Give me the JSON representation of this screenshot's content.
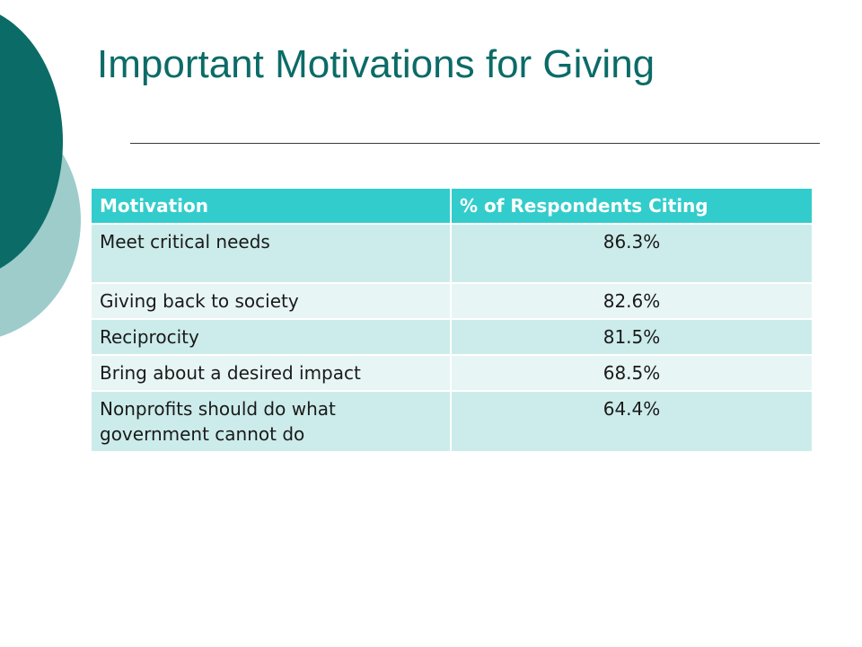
{
  "slide": {
    "title": "Important Motivations for Giving"
  },
  "table": {
    "headers": [
      "Motivation",
      "% of Respondents Citing"
    ],
    "rows": [
      {
        "motivation": "Meet critical needs",
        "percent": "86.3%"
      },
      {
        "motivation": "Giving back to society",
        "percent": "82.6%"
      },
      {
        "motivation": "Reciprocity",
        "percent": "81.5%"
      },
      {
        "motivation": "Bring about a desired impact",
        "percent": "68.5%"
      },
      {
        "motivation": "Nonprofits should do what government cannot do",
        "percent": "64.4%"
      }
    ]
  },
  "colors": {
    "title": "#0b6b67",
    "header_bg": "#33cccc",
    "row_dark": "#cceceb",
    "row_light": "#e8f5f5",
    "deco_dark": "#0b6b67",
    "deco_light": "#9dcccb"
  }
}
